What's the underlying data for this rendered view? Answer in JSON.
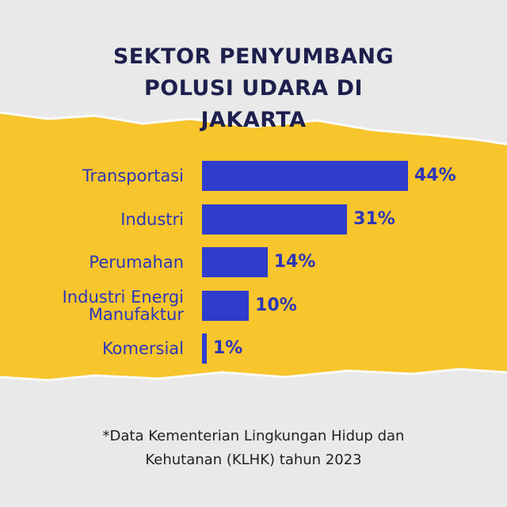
{
  "chart_data": {
    "type": "bar",
    "orientation": "horizontal",
    "title": "SEKTOR PENYUMBANG POLUSI UDARA DI JAKARTA",
    "categories": [
      "Transportasi",
      "Industri",
      "Perumahan",
      "Industri Energi Manufaktur",
      "Komersial"
    ],
    "values": [
      44,
      31,
      14,
      10,
      1
    ],
    "value_labels": [
      "44%",
      "31%",
      "14%",
      "10%",
      "1%"
    ],
    "color": "#2f3ccc",
    "note": "*Data Kementerian Lingkungan Hidup dan Kehutanan (KLHK) tahun 2023"
  }
}
